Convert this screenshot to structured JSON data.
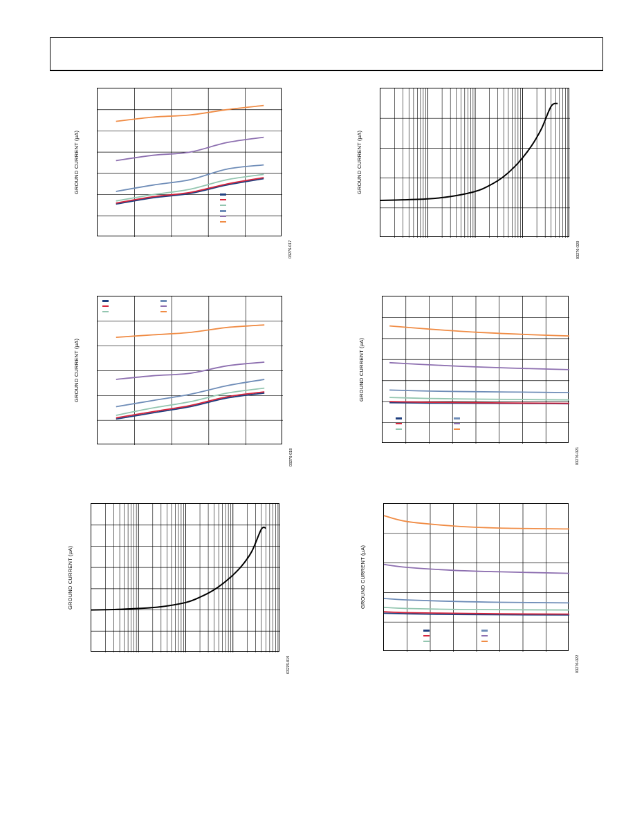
{
  "page": {
    "header_text": ""
  },
  "colors": {
    "navy": "#1f3f7f",
    "red": "#d7263d",
    "green": "#93c6b0",
    "blue": "#6f8db8",
    "purple": "#8d6fb0",
    "orange": "#f08c45",
    "black": "#000000"
  },
  "charts": [
    {
      "id": "fig17",
      "fig_number": "03276-017",
      "ylabel": "GROUND CURRENT (µA)"
    },
    {
      "id": "fig20",
      "fig_number": "03276-020",
      "ylabel": "GROUND CURRENT (µA)"
    },
    {
      "id": "fig18",
      "fig_number": "03276-018",
      "ylabel": "GROUND CURRENT (µA)"
    },
    {
      "id": "fig21",
      "fig_number": "03276-021",
      "ylabel": "GROUND CURRENT (µA)"
    },
    {
      "id": "fig19",
      "fig_number": "03276-019",
      "ylabel": "GROUND CURRENT (µA)"
    },
    {
      "id": "fig22",
      "fig_number": "03276-022",
      "ylabel": "GROUND CURRENT (µA)"
    }
  ],
  "chart_data": [
    {
      "type": "line",
      "id": "fig17",
      "title": "",
      "xlabel": "",
      "ylabel": "GROUND CURRENT (µA)",
      "xlim": [
        0,
        5
      ],
      "ylim": [
        0,
        7
      ],
      "grid": true,
      "x_gridlines": 5,
      "y_gridlines": 7,
      "legend_position": "bottom-right",
      "series": [
        {
          "color_key": "navy",
          "x": [
            0.5,
            1.5,
            2.5,
            3.5,
            4.5
          ],
          "y": [
            1.55,
            1.85,
            2.05,
            2.45,
            2.75
          ]
        },
        {
          "color_key": "red",
          "x": [
            0.5,
            1.5,
            2.5,
            3.5,
            4.5
          ],
          "y": [
            1.6,
            1.9,
            2.1,
            2.5,
            2.8
          ]
        },
        {
          "color_key": "green",
          "x": [
            0.5,
            1.5,
            2.5,
            3.5,
            4.5
          ],
          "y": [
            1.7,
            2.0,
            2.25,
            2.7,
            2.95
          ]
        },
        {
          "color_key": "blue",
          "x": [
            0.5,
            1.5,
            2.5,
            3.5,
            4.5
          ],
          "y": [
            2.15,
            2.45,
            2.7,
            3.2,
            3.4
          ]
        },
        {
          "color_key": "purple",
          "x": [
            0.5,
            1.5,
            2.5,
            3.5,
            4.5
          ],
          "y": [
            3.6,
            3.85,
            4.0,
            4.45,
            4.7
          ]
        },
        {
          "color_key": "orange",
          "x": [
            0.5,
            1.5,
            2.5,
            3.5,
            4.5
          ],
          "y": [
            5.45,
            5.65,
            5.75,
            6.0,
            6.2
          ]
        }
      ]
    },
    {
      "type": "line",
      "id": "fig20",
      "title": "",
      "xlabel": "",
      "ylabel": "GROUND CURRENT (µA)",
      "xscale": "log",
      "xlim": [
        0.1,
        1000
      ],
      "ylim": [
        0,
        5
      ],
      "grid": true,
      "y_gridlines": 5,
      "series": [
        {
          "color_key": "black",
          "x": [
            0.1,
            0.3,
            1,
            3,
            10,
            20,
            40,
            80,
            150,
            250,
            400,
            550
          ],
          "y": [
            1.25,
            1.27,
            1.3,
            1.38,
            1.55,
            1.75,
            2.05,
            2.5,
            3.05,
            3.65,
            4.4,
            4.5
          ]
        }
      ]
    },
    {
      "type": "line",
      "id": "fig18",
      "title": "",
      "xlabel": "",
      "ylabel": "GROUND CURRENT (µA)",
      "xlim": [
        0,
        5
      ],
      "ylim": [
        0,
        6
      ],
      "grid": true,
      "x_gridlines": 5,
      "y_gridlines": 6,
      "legend_position": "top-left",
      "series": [
        {
          "color_key": "navy",
          "x": [
            0.5,
            1.5,
            2.5,
            3.5,
            4.5
          ],
          "y": [
            1.05,
            1.3,
            1.55,
            1.9,
            2.1
          ]
        },
        {
          "color_key": "red",
          "x": [
            0.5,
            1.5,
            2.5,
            3.5,
            4.5
          ],
          "y": [
            1.1,
            1.35,
            1.6,
            1.95,
            2.15
          ]
        },
        {
          "color_key": "green",
          "x": [
            0.5,
            1.5,
            2.5,
            3.5,
            4.5
          ],
          "y": [
            1.2,
            1.5,
            1.75,
            2.1,
            2.3
          ]
        },
        {
          "color_key": "blue",
          "x": [
            0.5,
            1.5,
            2.5,
            3.5,
            4.5
          ],
          "y": [
            1.55,
            1.8,
            2.05,
            2.4,
            2.65
          ]
        },
        {
          "color_key": "purple",
          "x": [
            0.5,
            1.5,
            2.5,
            3.5,
            4.5
          ],
          "y": [
            2.65,
            2.8,
            2.9,
            3.2,
            3.35
          ]
        },
        {
          "color_key": "orange",
          "x": [
            0.5,
            1.5,
            2.5,
            3.5,
            4.5
          ],
          "y": [
            4.35,
            4.45,
            4.55,
            4.75,
            4.85
          ]
        }
      ]
    },
    {
      "type": "line",
      "id": "fig21",
      "title": "",
      "xlabel": "",
      "ylabel": "GROUND CURRENT (µA)",
      "xlim": [
        0,
        8
      ],
      "ylim": [
        0,
        7
      ],
      "grid": true,
      "x_gridlines": 8,
      "y_gridlines": 7,
      "legend_position": "bottom-left",
      "series": [
        {
          "color_key": "navy",
          "x": [
            0.3,
            2,
            4,
            6,
            8
          ],
          "y": [
            1.95,
            1.93,
            1.92,
            1.91,
            1.9
          ]
        },
        {
          "color_key": "red",
          "x": [
            0.3,
            2,
            4,
            6,
            8
          ],
          "y": [
            2.0,
            1.97,
            1.95,
            1.93,
            1.92
          ]
        },
        {
          "color_key": "green",
          "x": [
            0.3,
            2,
            4,
            6,
            8
          ],
          "y": [
            2.2,
            2.15,
            2.12,
            2.1,
            2.08
          ]
        },
        {
          "color_key": "blue",
          "x": [
            0.3,
            2,
            4,
            6,
            8
          ],
          "y": [
            2.55,
            2.5,
            2.47,
            2.45,
            2.43
          ]
        },
        {
          "color_key": "purple",
          "x": [
            0.3,
            2,
            4,
            6,
            8
          ],
          "y": [
            3.85,
            3.75,
            3.65,
            3.58,
            3.52
          ]
        },
        {
          "color_key": "orange",
          "x": [
            0.3,
            2,
            4,
            6,
            8
          ],
          "y": [
            5.6,
            5.45,
            5.3,
            5.2,
            5.12
          ]
        }
      ]
    },
    {
      "type": "line",
      "id": "fig19",
      "title": "",
      "xlabel": "",
      "ylabel": "GROUND CURRENT (µA)",
      "xscale": "log",
      "xlim": [
        0.1,
        1000
      ],
      "ylim": [
        0,
        7
      ],
      "grid": true,
      "y_gridlines": 7,
      "series": [
        {
          "color_key": "black",
          "x": [
            0.1,
            0.3,
            1,
            3,
            10,
            20,
            40,
            80,
            150,
            250,
            400,
            500
          ],
          "y": [
            2.0,
            2.02,
            2.07,
            2.15,
            2.35,
            2.6,
            2.95,
            3.45,
            4.05,
            4.75,
            5.8,
            5.85
          ]
        }
      ]
    },
    {
      "type": "line",
      "id": "fig22",
      "title": "",
      "xlabel": "",
      "ylabel": "GROUND CURRENT (µA)",
      "xlim": [
        0,
        8
      ],
      "ylim": [
        0,
        5
      ],
      "grid": true,
      "x_gridlines": 8,
      "y_gridlines": 5,
      "legend_position": "bottom-left",
      "series": [
        {
          "color_key": "navy",
          "x": [
            0,
            1,
            3,
            5,
            8
          ],
          "y": [
            1.3,
            1.28,
            1.26,
            1.25,
            1.24
          ]
        },
        {
          "color_key": "red",
          "x": [
            0,
            1,
            3,
            5,
            8
          ],
          "y": [
            1.35,
            1.32,
            1.3,
            1.28,
            1.27
          ]
        },
        {
          "color_key": "green",
          "x": [
            0,
            1,
            3,
            5,
            8
          ],
          "y": [
            1.5,
            1.46,
            1.43,
            1.42,
            1.41
          ]
        },
        {
          "color_key": "blue",
          "x": [
            0,
            1,
            3,
            5,
            8
          ],
          "y": [
            1.8,
            1.75,
            1.7,
            1.67,
            1.65
          ]
        },
        {
          "color_key": "purple",
          "x": [
            0,
            1,
            3,
            5,
            8
          ],
          "y": [
            2.95,
            2.85,
            2.75,
            2.7,
            2.65
          ]
        },
        {
          "color_key": "orange",
          "x": [
            0,
            1,
            3,
            5,
            8
          ],
          "y": [
            4.6,
            4.4,
            4.25,
            4.18,
            4.15
          ]
        }
      ]
    }
  ]
}
